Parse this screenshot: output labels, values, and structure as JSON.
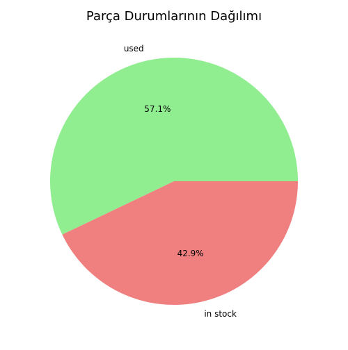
{
  "chart_data": {
    "type": "pie",
    "title": "Parça Durumlarının Dağılımı",
    "labels": [
      "used",
      "in stock"
    ],
    "values": [
      57.1,
      42.9
    ],
    "value_labels": [
      "57.1%",
      "42.9%"
    ],
    "colors": [
      "#90ee90",
      "#f08080"
    ],
    "legend": "none"
  }
}
